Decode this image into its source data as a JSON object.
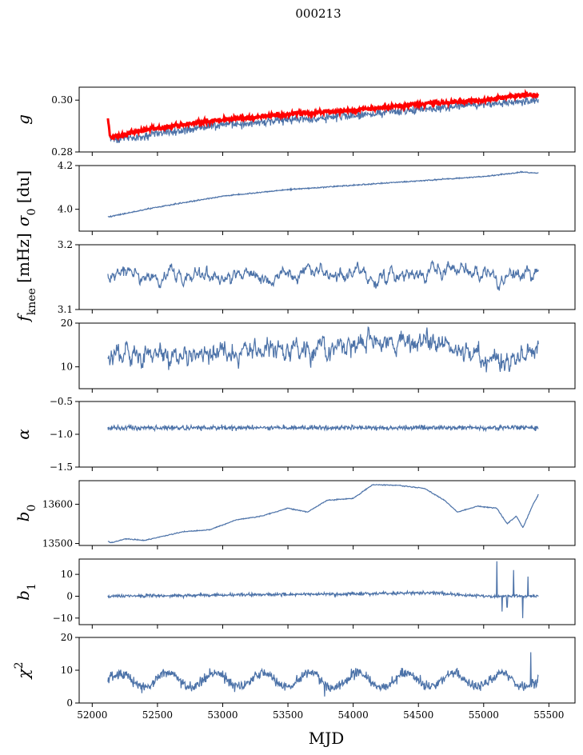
{
  "figure": {
    "suptitle": "000213",
    "xlabel": "MJD"
  },
  "colors": {
    "series": "#4c72a8",
    "overlay": "#ff0000",
    "axis": "#000000"
  },
  "chart_data": {
    "type": "line",
    "title": "000213",
    "xlabel": "MJD",
    "xlim": [
      51900,
      55700
    ],
    "x_ticks": [
      52000,
      52500,
      53000,
      53500,
      54000,
      54500,
      55000,
      55500
    ],
    "x_range_data": [
      52120,
      55420
    ],
    "panels": [
      {
        "key": "g",
        "ylabel_main": "g",
        "ylabel_sub": "",
        "ylabel_rest": "",
        "ylim": [
          0.28,
          0.305
        ],
        "y_ticks": [
          0.28,
          0.3
        ],
        "y_tick_labels": [
          "0.28",
          "0.30"
        ],
        "series": [
          {
            "name": "data",
            "color": "#4c72a8",
            "noise": 0.0012,
            "anchors": [
              [
                52120,
                0.2915
              ],
              [
                52140,
                0.2845
              ],
              [
                52400,
                0.2865
              ],
              [
                53000,
                0.2905
              ],
              [
                53500,
                0.2925
              ],
              [
                54000,
                0.294
              ],
              [
                54500,
                0.2965
              ],
              [
                55000,
                0.2985
              ],
              [
                55300,
                0.2995
              ],
              [
                55420,
                0.2998
              ]
            ]
          },
          {
            "name": "model",
            "color": "#ff0000",
            "noise": 0.0006,
            "width": 3,
            "anchors": [
              [
                52120,
                0.2925
              ],
              [
                52140,
                0.2855
              ],
              [
                52400,
                0.2885
              ],
              [
                53000,
                0.2925
              ],
              [
                53500,
                0.2945
              ],
              [
                54000,
                0.296
              ],
              [
                54500,
                0.2985
              ],
              [
                55000,
                0.3
              ],
              [
                55300,
                0.302
              ],
              [
                55420,
                0.302
              ]
            ]
          }
        ]
      },
      {
        "key": "sigma0",
        "ylabel_main": "σ",
        "ylabel_sub": "0",
        "ylabel_rest": " [du]",
        "ylim": [
          3.9,
          4.2
        ],
        "y_ticks": [
          4.0,
          4.2
        ],
        "y_tick_labels": [
          "4.0",
          "4.2"
        ],
        "series": [
          {
            "name": "data",
            "color": "#4c72a8",
            "noise": 0.002,
            "anchors": [
              [
                52120,
                3.965
              ],
              [
                52500,
                4.01
              ],
              [
                53000,
                4.06
              ],
              [
                53500,
                4.09
              ],
              [
                54000,
                4.11
              ],
              [
                54500,
                4.13
              ],
              [
                55000,
                4.15
              ],
              [
                55300,
                4.17
              ],
              [
                55420,
                4.165
              ]
            ]
          }
        ]
      },
      {
        "key": "fknee",
        "ylabel_main": "f",
        "ylabel_sub": "knee",
        "ylabel_rest": " [mHz]",
        "ylim": [
          3.1,
          3.2
        ],
        "y_ticks": [
          3.1,
          3.2
        ],
        "y_tick_labels": [
          "3.1",
          "3.2"
        ],
        "series": [
          {
            "name": "data",
            "color": "#4c72a8",
            "noise": 0.007,
            "ar": 0.85,
            "anchors": [
              [
                52120,
                3.155
              ],
              [
                55420,
                3.155
              ]
            ]
          }
        ]
      },
      {
        "key": "fknee_mhz",
        "ylabel_main": "",
        "ylabel_sub": "",
        "ylabel_rest": "",
        "ylim": [
          5,
          20
        ],
        "y_ticks": [
          10,
          20
        ],
        "y_tick_labels": [
          "10",
          "20"
        ],
        "series": [
          {
            "name": "data",
            "color": "#4c72a8",
            "noise": 1.1,
            "ar": 0.6,
            "anchors": [
              [
                52120,
                13
              ],
              [
                52600,
                12.5
              ],
              [
                53200,
                13.5
              ],
              [
                53800,
                14
              ],
              [
                54300,
                16
              ],
              [
                54700,
                15
              ],
              [
                55000,
                12
              ],
              [
                55300,
                12
              ],
              [
                55420,
                15
              ]
            ]
          }
        ]
      },
      {
        "key": "alpha",
        "ylabel_main": "α",
        "ylabel_sub": "",
        "ylabel_rest": "",
        "ylim": [
          -1.5,
          -0.5
        ],
        "y_ticks": [
          -1.5,
          -1.0,
          -0.5
        ],
        "y_tick_labels": [
          "−1.5",
          "−1.0",
          "−0.5"
        ],
        "series": [
          {
            "name": "data",
            "color": "#4c72a8",
            "noise": 0.025,
            "anchors": [
              [
                52120,
                -0.9
              ],
              [
                55420,
                -0.9
              ]
            ]
          }
        ]
      },
      {
        "key": "b0",
        "ylabel_main": "b",
        "ylabel_sub": "0",
        "ylabel_rest": "",
        "ylim": [
          13495,
          13660
        ],
        "y_ticks": [
          13500,
          13600
        ],
        "y_tick_labels": [
          "13500",
          "13600"
        ],
        "series": [
          {
            "name": "data",
            "color": "#4c72a8",
            "noise": 0.8,
            "anchors": [
              [
                52120,
                13505
              ],
              [
                52150,
                13502
              ],
              [
                52250,
                13512
              ],
              [
                52400,
                13508
              ],
              [
                52700,
                13530
              ],
              [
                52900,
                13535
              ],
              [
                53100,
                13560
              ],
              [
                53300,
                13570
              ],
              [
                53500,
                13590
              ],
              [
                53650,
                13580
              ],
              [
                53800,
                13610
              ],
              [
                54000,
                13615
              ],
              [
                54150,
                13650
              ],
              [
                54350,
                13648
              ],
              [
                54550,
                13640
              ],
              [
                54700,
                13610
              ],
              [
                54800,
                13580
              ],
              [
                54950,
                13595
              ],
              [
                55100,
                13590
              ],
              [
                55180,
                13550
              ],
              [
                55250,
                13570
              ],
              [
                55300,
                13540
              ],
              [
                55380,
                13600
              ],
              [
                55420,
                13625
              ]
            ]
          }
        ]
      },
      {
        "key": "b1",
        "ylabel_main": "b",
        "ylabel_sub": "1",
        "ylabel_rest": "",
        "ylim": [
          -13,
          17
        ],
        "y_ticks": [
          -10,
          0,
          10
        ],
        "y_tick_labels": [
          "−10",
          "0",
          "10"
        ],
        "series": [
          {
            "name": "data",
            "color": "#4c72a8",
            "noise": 0.5,
            "anchors": [
              [
                52120,
                0
              ],
              [
                54600,
                1.5
              ],
              [
                55000,
                0
              ],
              [
                55420,
                0
              ]
            ],
            "spikes": [
              [
                55100,
                16
              ],
              [
                55140,
                -7
              ],
              [
                55230,
                12
              ],
              [
                55300,
                -10
              ],
              [
                55340,
                9
              ],
              [
                55180,
                -5
              ]
            ]
          }
        ]
      },
      {
        "key": "chi2",
        "ylabel_main": "χ",
        "ylabel_sub": "",
        "ylabel_sup": "2",
        "ylabel_rest": "",
        "ylim": [
          0,
          20
        ],
        "y_ticks": [
          0,
          10,
          20
        ],
        "y_tick_labels": [
          "0",
          "10",
          "20"
        ],
        "series": [
          {
            "name": "data",
            "color": "#4c72a8",
            "noise": 1.1,
            "seasonal": 2.2,
            "anchors": [
              [
                52120,
                7
              ],
              [
                55420,
                7
              ]
            ],
            "spikes": [
              [
                53780,
                2
              ],
              [
                55360,
                15.5
              ]
            ]
          }
        ]
      }
    ]
  }
}
